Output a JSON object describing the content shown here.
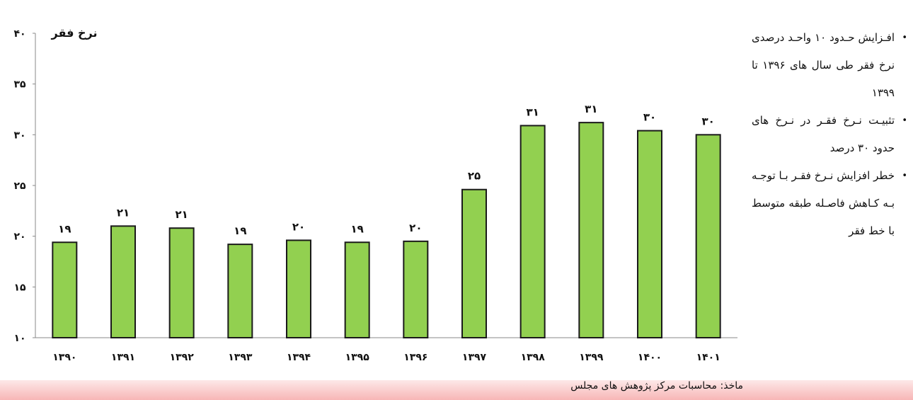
{
  "chart_data": {
    "type": "bar",
    "ylabel": "نرخ فقر",
    "ylim": [
      10,
      40
    ],
    "yticks": [
      10,
      15,
      20,
      25,
      30,
      35,
      40
    ],
    "ytick_labels": [
      "۱۰",
      "۱۵",
      "۲۰",
      "۲۵",
      "۳۰",
      "۳۵",
      "۴۰"
    ],
    "categories": [
      "۱۳۹۰",
      "۱۳۹۱",
      "۱۳۹۲",
      "۱۳۹۳",
      "۱۳۹۴",
      "۱۳۹۵",
      "۱۳۹۶",
      "۱۳۹۷",
      "۱۳۹۸",
      "۱۳۹۹",
      "۱۴۰۰",
      "۱۴۰۱"
    ],
    "values": [
      19.4,
      21.0,
      20.8,
      19.2,
      19.6,
      19.4,
      19.5,
      24.6,
      30.9,
      31.2,
      30.4,
      30.0
    ],
    "data_labels": [
      "۱۹",
      "۲۱",
      "۲۱",
      "۱۹",
      "۲۰",
      "۱۹",
      "۲۰",
      "۲۵",
      "۳۱",
      "۳۱",
      "۳۰",
      "۳۰"
    ],
    "grid": false,
    "bar_color": "#92d050",
    "bar_edge_color": "#1a1a1a"
  },
  "bullets": [
    "افـزایش حـدود ۱۰ واحـد درصدی نرخ فقر طی سال های ۱۳۹۶ تا ۱۳۹۹",
    "تثبیـت نـرخ فقـر در نـرخ های حدود ۳۰ درصد",
    "خطر افزایش نـرخ فقـر بـا توجـه بـه کـاهش فاصـله طبقه متوسط با خط فقر"
  ],
  "source": "ماخذ: محاسبات مرکز پژوهش های مجلس"
}
